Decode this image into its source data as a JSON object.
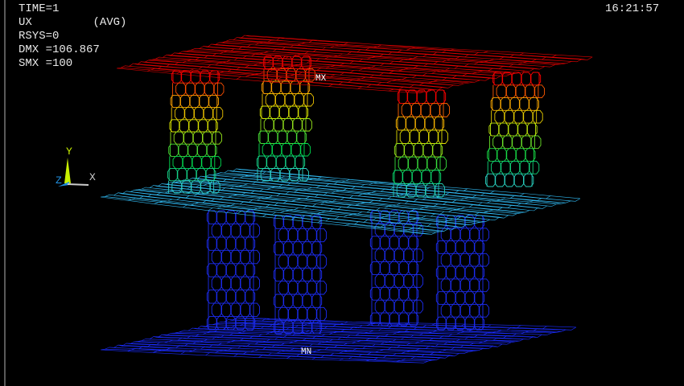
{
  "legend_text": {
    "time": "TIME=1",
    "result": "UX",
    "avg": "(AVG)",
    "rsys": "RSYS=0",
    "dmx": "DMX =106.867",
    "smx": "SMX =100"
  },
  "clock": "16:21:57",
  "markers": {
    "max": "MX",
    "min": "MN"
  },
  "triad": {
    "x": "X",
    "y": "Y",
    "z": "Z"
  },
  "colors": {
    "max": "#ff0000",
    "high": "#ffff00",
    "mid": "#00e000",
    "low_mid": "#40c0ff",
    "min": "#1020ff",
    "background": "#000000"
  }
}
